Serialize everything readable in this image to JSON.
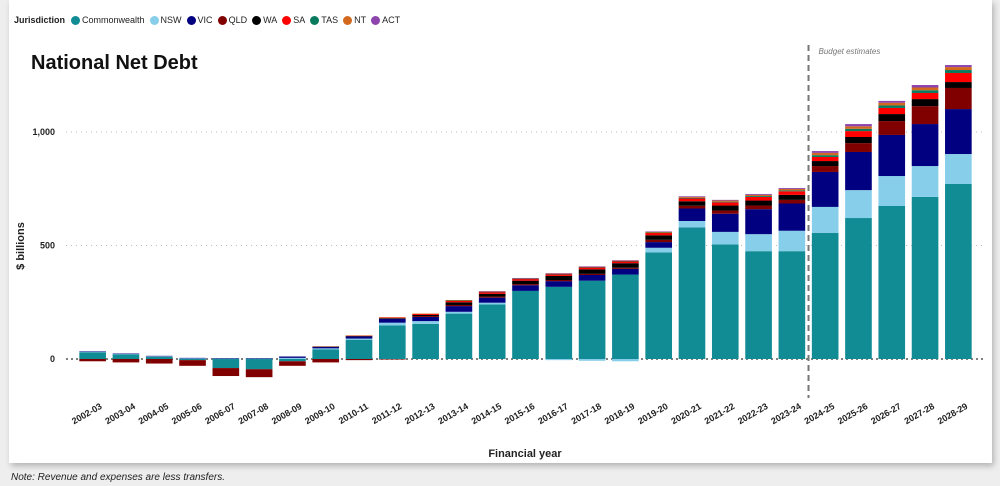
{
  "note": "Note: Revenue and expenses are less transfers.",
  "legend": {
    "title": "Jurisdiction",
    "items": [
      {
        "label": "Commonwealth",
        "color": "#118b94"
      },
      {
        "label": "NSW",
        "color": "#87ceeb"
      },
      {
        "label": "VIC",
        "color": "#000080"
      },
      {
        "label": "QLD",
        "color": "#800000"
      },
      {
        "label": "WA",
        "color": "#000000"
      },
      {
        "label": "SA",
        "color": "#ff0000"
      },
      {
        "label": "TAS",
        "color": "#0a7a5e"
      },
      {
        "label": "NT",
        "color": "#d2691e"
      },
      {
        "label": "ACT",
        "color": "#8e44ad"
      }
    ]
  },
  "chart_data": {
    "type": "bar",
    "stacked": true,
    "title": "National Net Debt",
    "xlabel": "Financial year",
    "ylabel": "$ billions",
    "ylim": [
      -90,
      1330
    ],
    "yticks": [
      0,
      500,
      1000
    ],
    "ytick_labels": [
      "0",
      "500",
      "1,000"
    ],
    "grid": "horizontal-dotted",
    "legend_position": "top-left",
    "annotation": {
      "text": "Budget estimates",
      "after_category": "2023-24"
    },
    "categories": [
      "2002-03",
      "2003-04",
      "2004-05",
      "2005-06",
      "2006-07",
      "2007-08",
      "2008-09",
      "2009-10",
      "2010-11",
      "2011-12",
      "2012-13",
      "2013-14",
      "2014-15",
      "2015-16",
      "2016-17",
      "2017-18",
      "2018-19",
      "2019-20",
      "2020-21",
      "2021-22",
      "2022-23",
      "2023-24",
      "2024-25",
      "2025-26",
      "2026-27",
      "2027-28",
      "2028-29"
    ],
    "series": [
      {
        "name": "Commonwealth",
        "color": "#118b94",
        "values": [
          30,
          20,
          10,
          -5,
          -40,
          -45,
          -10,
          42,
          85,
          148,
          155,
          200,
          240,
          300,
          318,
          345,
          372,
          470,
          580,
          505,
          475,
          475,
          555,
          621,
          674,
          714,
          771
        ]
      },
      {
        "name": "NSW",
        "color": "#87ceeb",
        "values": [
          2,
          2,
          2,
          3,
          2,
          2,
          5,
          5,
          5,
          12,
          12,
          8,
          8,
          0,
          -5,
          -8,
          -10,
          20,
          28,
          55,
          75,
          90,
          115,
          123,
          132,
          136,
          132
        ]
      },
      {
        "name": "VIC",
        "color": "#000080",
        "values": [
          2,
          2,
          2,
          2,
          2,
          2,
          6,
          8,
          10,
          17,
          18,
          25,
          22,
          25,
          25,
          25,
          25,
          25,
          55,
          80,
          110,
          120,
          154,
          168,
          181,
          185,
          198
        ]
      },
      {
        "name": "QLD",
        "color": "#800000",
        "values": [
          -10,
          -15,
          -20,
          -25,
          -35,
          -35,
          -20,
          -15,
          -5,
          -2,
          4,
          5,
          5,
          5,
          5,
          5,
          5,
          10,
          12,
          14,
          16,
          16,
          26,
          39,
          61,
          79,
          93
        ]
      },
      {
        "name": "WA",
        "color": "#000000",
        "values": [
          0,
          0,
          0,
          0,
          0,
          0,
          0,
          0,
          2,
          3,
          5,
          12,
          12,
          15,
          18,
          20,
          20,
          20,
          20,
          22,
          22,
          22,
          22,
          27,
          31,
          31,
          26
        ]
      },
      {
        "name": "SA",
        "color": "#ff0000",
        "values": [
          0,
          0,
          0,
          0,
          0,
          0,
          0,
          0,
          1,
          3,
          5,
          7,
          8,
          8,
          8,
          9,
          9,
          10,
          12,
          14,
          16,
          16,
          18,
          26,
          27,
          27,
          40
        ]
      },
      {
        "name": "TAS",
        "color": "#0a7a5e",
        "values": [
          0,
          0,
          0,
          0,
          0,
          0,
          0,
          0,
          0,
          0,
          0,
          1,
          1,
          1,
          1,
          1,
          1,
          2,
          3,
          3,
          4,
          4,
          8,
          10,
          11,
          12,
          13
        ]
      },
      {
        "name": "NT",
        "color": "#d2691e",
        "values": [
          0,
          0,
          0,
          0,
          0,
          0,
          0,
          1,
          1,
          1,
          1,
          2,
          2,
          2,
          2,
          2,
          2,
          3,
          4,
          5,
          5,
          6,
          10,
          11,
          12,
          12,
          13
        ]
      },
      {
        "name": "ACT",
        "color": "#8e44ad",
        "values": [
          0,
          0,
          0,
          0,
          0,
          0,
          0,
          0,
          0,
          0,
          0,
          0,
          1,
          1,
          1,
          1,
          1,
          2,
          3,
          3,
          4,
          4,
          8,
          10,
          8,
          11,
          9
        ]
      }
    ]
  }
}
